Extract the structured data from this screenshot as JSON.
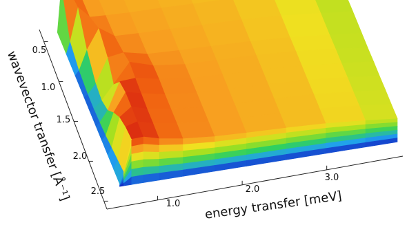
{
  "chart_data": {
    "type": "heatmap",
    "projection": "3d-surface",
    "xlabel": "energy transfer [meV]",
    "ylabel": "wavevector transfer [Å⁻¹]",
    "x_ticks": [
      "1.0",
      "2.0",
      "3.0"
    ],
    "y_ticks": [
      "0.5",
      "1.0",
      "1.5",
      "2.0",
      "2.5"
    ],
    "xlim": [
      0.4,
      3.9
    ],
    "ylim": [
      0.35,
      2.6
    ],
    "grid": false,
    "colormap": [
      "#1020c0",
      "#20a0f0",
      "#30d060",
      "#a0e020",
      "#f0e020",
      "#f8a020",
      "#f06010",
      "#d01010"
    ],
    "surface": {
      "x": [
        0.4,
        0.45,
        0.55,
        0.7,
        0.9,
        1.2,
        1.6,
        2.0,
        2.5,
        3.0,
        3.5,
        3.9
      ],
      "y": [
        0.4,
        0.7,
        1.0,
        1.3,
        1.5,
        1.7,
        1.9,
        2.1,
        2.3,
        2.5
      ],
      "z": [
        [
          0.05,
          1.0,
          0.9,
          0.72,
          0.7,
          0.68,
          0.68,
          0.66,
          0.64,
          0.6,
          0.52,
          0.45
        ],
        [
          0.05,
          0.3,
          0.98,
          0.74,
          0.72,
          0.7,
          0.69,
          0.67,
          0.65,
          0.6,
          0.52,
          0.45
        ],
        [
          0.05,
          0.15,
          0.55,
          0.96,
          0.74,
          0.72,
          0.7,
          0.68,
          0.66,
          0.61,
          0.53,
          0.46
        ],
        [
          0.05,
          0.1,
          0.3,
          0.8,
          0.85,
          0.74,
          0.71,
          0.69,
          0.66,
          0.61,
          0.53,
          0.46
        ],
        [
          0.05,
          0.1,
          0.25,
          0.55,
          0.95,
          0.8,
          0.72,
          0.7,
          0.67,
          0.62,
          0.54,
          0.46
        ],
        [
          0.05,
          0.12,
          0.35,
          0.9,
          0.92,
          0.82,
          0.73,
          0.7,
          0.67,
          0.62,
          0.54,
          0.47
        ],
        [
          0.05,
          0.15,
          0.6,
          0.98,
          0.9,
          0.8,
          0.73,
          0.7,
          0.67,
          0.62,
          0.55,
          0.47
        ],
        [
          0.05,
          0.2,
          0.8,
          0.98,
          0.88,
          0.8,
          0.73,
          0.7,
          0.67,
          0.63,
          0.55,
          0.48
        ],
        [
          0.05,
          0.25,
          0.9,
          0.97,
          0.88,
          0.8,
          0.73,
          0.7,
          0.67,
          0.63,
          0.56,
          0.48
        ],
        [
          0.05,
          0.3,
          0.95,
          0.96,
          0.87,
          0.79,
          0.73,
          0.7,
          0.67,
          0.63,
          0.56,
          0.49
        ]
      ]
    }
  }
}
